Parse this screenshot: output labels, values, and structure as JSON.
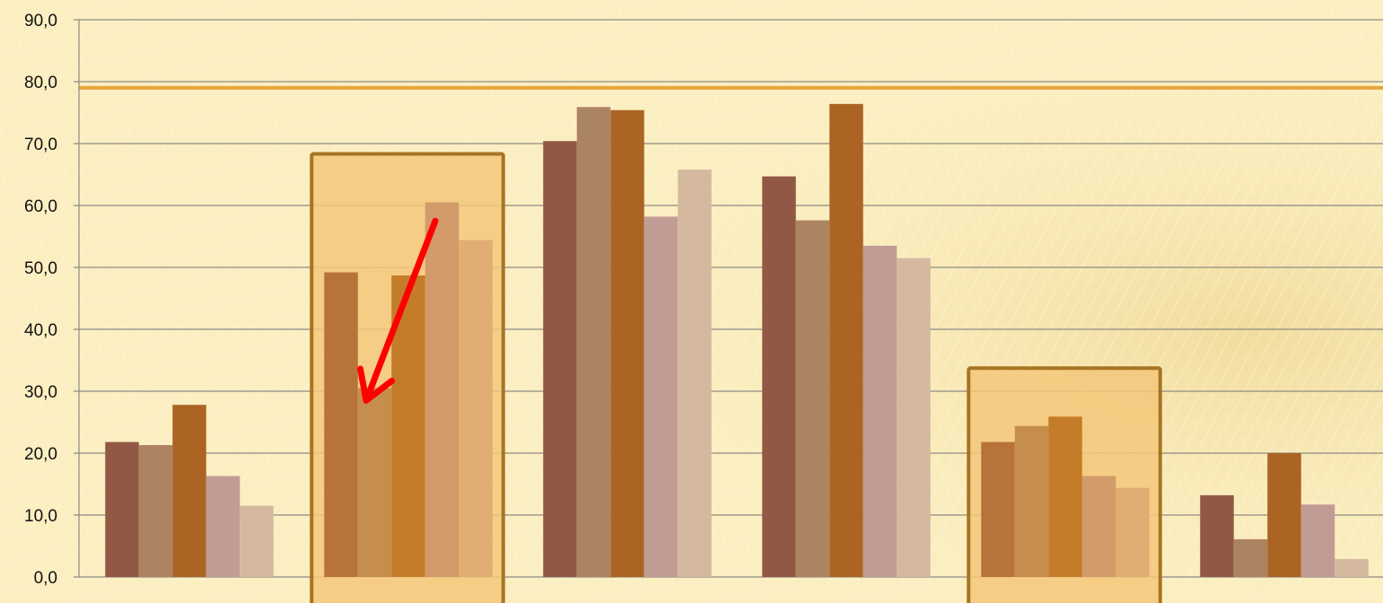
{
  "chart_data": {
    "type": "bar",
    "title": "",
    "xlabel": "",
    "ylabel": "",
    "ylim": [
      0,
      90
    ],
    "yticks": [
      "0,0",
      "10,0",
      "20,0",
      "30,0",
      "40,0",
      "50,0",
      "60,0",
      "70,0",
      "80,0",
      "90,0"
    ],
    "grid": true,
    "legend": "none",
    "groups": 6,
    "series_per_group": 5,
    "values": [
      [
        21.8,
        21.3,
        27.8,
        16.3,
        11.5
      ],
      [
        49.2,
        30.5,
        48.7,
        60.5,
        54.4
      ],
      [
        70.4,
        75.9,
        75.4,
        58.2,
        65.8
      ],
      [
        64.7,
        57.6,
        76.4,
        53.5,
        51.5
      ],
      [
        21.8,
        24.4,
        25.9,
        16.3,
        14.4
      ],
      [
        13.2,
        6.1,
        20.0,
        11.7,
        2.9
      ]
    ],
    "reference_line": 79,
    "highlighted_groups": [
      1,
      4
    ],
    "arrow_annotation": {
      "group": 1,
      "from_value": 57.5,
      "to_value": 28.5
    }
  },
  "colors": {
    "background": "#fbeec0",
    "gridline": "#8c8c84",
    "reference_line": "#e8a33c",
    "highlight_fill": "#f3c77a",
    "highlight_border": "#a87422",
    "arrow": "#ff0000",
    "series_normal": [
      "#925846",
      "#ad8462",
      "#ab6424",
      "#c19c94",
      "#d5b99f"
    ],
    "series_highlight": [
      "#b7733a",
      "#c68e4c",
      "#c47c28",
      "#d39a6a",
      "#e0ad72"
    ]
  }
}
